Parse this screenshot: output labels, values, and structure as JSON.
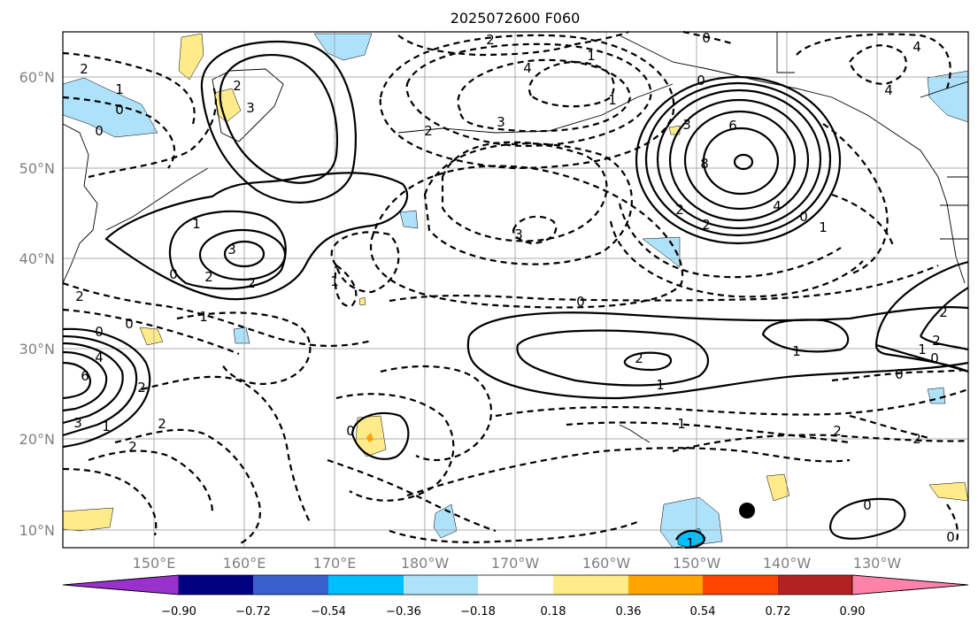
{
  "title": "2025072600 F060",
  "lat_labels": [
    "60°N",
    "50°N",
    "40°N",
    "30°N",
    "20°N",
    "10°N"
  ],
  "lon_labels": [
    "150°E",
    "160°E",
    "170°E",
    "180°W",
    "170°W",
    "160°W",
    "150°W",
    "140°W",
    "130°W"
  ],
  "colorbar": {
    "ticks": [
      "−0.90",
      "−0.72",
      "−0.54",
      "−0.36",
      "−0.18",
      "0.18",
      "0.36",
      "0.54",
      "0.72",
      "0.90"
    ],
    "colors": {
      "under": "#9932CC",
      "b1": "#000080",
      "b2": "#3A5FCD",
      "b3": "#00BFFF",
      "b4": "#AEE2FA",
      "b5": "#FFFFFF",
      "b6": "#FFEB8A",
      "b7": "#FFA500",
      "b8": "#FF4500",
      "b9": "#B22222",
      "over": "#FF82AB"
    }
  },
  "contour_labels": {
    "l01": "2",
    "l02": "1",
    "l03": "0",
    "l04": "0",
    "l05": "2",
    "l06": "3",
    "l07": "2",
    "l08": "1",
    "l09": "0",
    "l10": "4",
    "l11": "3",
    "l12": "2",
    "l13": "1",
    "l14": "2",
    "l15": "0",
    "l16": "3",
    "l17": "6",
    "l18": "8",
    "l19": "4",
    "l20": "2",
    "l21": "2",
    "l22": "0",
    "l23": "1",
    "l24": "3",
    "l25": "2",
    "l26": "0",
    "l27": "2",
    "l28": "1",
    "l29": "1",
    "l30": "3",
    "l31": "0",
    "l32": "0",
    "l33": "4",
    "l34": "6",
    "l35": "3",
    "l36": "1",
    "l37": "2",
    "l38": "2",
    "l39": "0",
    "l40": "2",
    "l41": "1",
    "l42": "0",
    "l43": "1",
    "l44": "1",
    "l45": "2",
    "l46": "0",
    "l47": "2",
    "l48": "1",
    "l49": "0",
    "l50": "2",
    "l51": "2",
    "l52": "0",
    "l53": "0",
    "l54": "4",
    "l55": "1",
    "l56": "4",
    "l57": "2",
    "l58": "1"
  },
  "marker": {
    "label": "black dot",
    "color": "#000000"
  }
}
